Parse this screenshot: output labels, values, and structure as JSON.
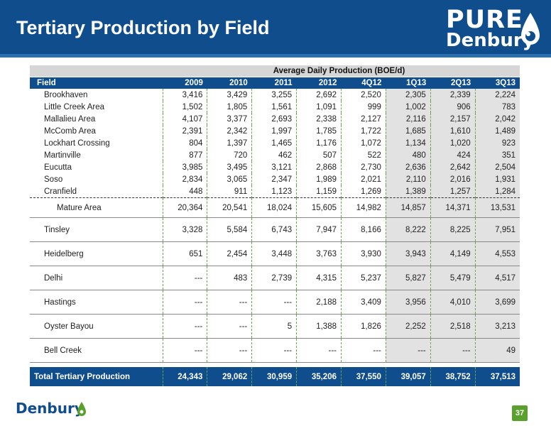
{
  "header": {
    "title": "Tertiary Production by Field"
  },
  "logo": {
    "word1": "PURE",
    "word2": "Denbury"
  },
  "table": {
    "group_header": "Average Daily Production (BOE/d)",
    "field_header": "Field",
    "columns": [
      "2009",
      "2010",
      "2011",
      "2012",
      "4Q12",
      "1Q13",
      "2Q13",
      "3Q13"
    ],
    "mature_fields": [
      {
        "name": "Brookhaven",
        "values": [
          "3,416",
          "3,429",
          "3,255",
          "2,692",
          "2,520",
          "2,305",
          "2,339",
          "2,224"
        ]
      },
      {
        "name": "Little Creek Area",
        "values": [
          "1,502",
          "1,805",
          "1,561",
          "1,091",
          "999",
          "1,002",
          "906",
          "783"
        ]
      },
      {
        "name": "Mallalieu Area",
        "values": [
          "4,107",
          "3,377",
          "2,693",
          "2,338",
          "2,127",
          "2,116",
          "2,157",
          "2,042"
        ]
      },
      {
        "name": "McComb Area",
        "values": [
          "2,391",
          "2,342",
          "1,997",
          "1,785",
          "1,722",
          "1,685",
          "1,610",
          "1,489"
        ]
      },
      {
        "name": "Lockhart Crossing",
        "values": [
          "804",
          "1,397",
          "1,465",
          "1,176",
          "1,072",
          "1,134",
          "1,020",
          "923"
        ]
      },
      {
        "name": "Martinville",
        "values": [
          "877",
          "720",
          "462",
          "507",
          "522",
          "480",
          "424",
          "351"
        ]
      },
      {
        "name": "Eucutta",
        "values": [
          "3,985",
          "3,495",
          "3,121",
          "2,868",
          "2,730",
          "2,636",
          "2,642",
          "2,504"
        ]
      },
      {
        "name": "Soso",
        "values": [
          "2,834",
          "3,065",
          "2,347",
          "1,989",
          "2,021",
          "2,110",
          "2,016",
          "1,931"
        ]
      },
      {
        "name": "Cranfield",
        "values": [
          "448",
          "911",
          "1,123",
          "1,159",
          "1,269",
          "1,389",
          "1,257",
          "1,284"
        ]
      }
    ],
    "mature_total": {
      "name": "Mature Area",
      "values": [
        "20,364",
        "20,541",
        "18,024",
        "15,605",
        "14,982",
        "14,857",
        "14,371",
        "13,531"
      ]
    },
    "other_fields": [
      {
        "name": "Tinsley",
        "values": [
          "3,328",
          "5,584",
          "6,743",
          "7,947",
          "8,166",
          "8,222",
          "8,225",
          "7,951"
        ]
      },
      {
        "name": "Heidelberg",
        "values": [
          "651",
          "2,454",
          "3,448",
          "3,763",
          "3,930",
          "3,943",
          "4,149",
          "4,553"
        ]
      },
      {
        "name": "Delhi",
        "values": [
          "---",
          "483",
          "2,739",
          "4,315",
          "5,237",
          "5,827",
          "5,479",
          "4,517"
        ]
      },
      {
        "name": "Hastings",
        "values": [
          "---",
          "---",
          "---",
          "2,188",
          "3,409",
          "3,956",
          "4,010",
          "3,699"
        ]
      },
      {
        "name": "Oyster Bayou",
        "values": [
          "---",
          "---",
          "5",
          "1,388",
          "1,826",
          "2,252",
          "2,518",
          "3,213"
        ]
      },
      {
        "name": "Bell Creek",
        "values": [
          "---",
          "---",
          "---",
          "---",
          "---",
          "---",
          "---",
          "49"
        ]
      }
    ],
    "total": {
      "name": "Total Tertiary Production",
      "values": [
        "24,343",
        "29,062",
        "30,959",
        "35,206",
        "37,550",
        "39,057",
        "38,752",
        "37,513"
      ]
    }
  },
  "footer": {
    "logo_text": "Denbury",
    "page_number": "37"
  },
  "colors": {
    "brand_blue": "#0f4d8c",
    "accent_green": "#5aa02c"
  }
}
